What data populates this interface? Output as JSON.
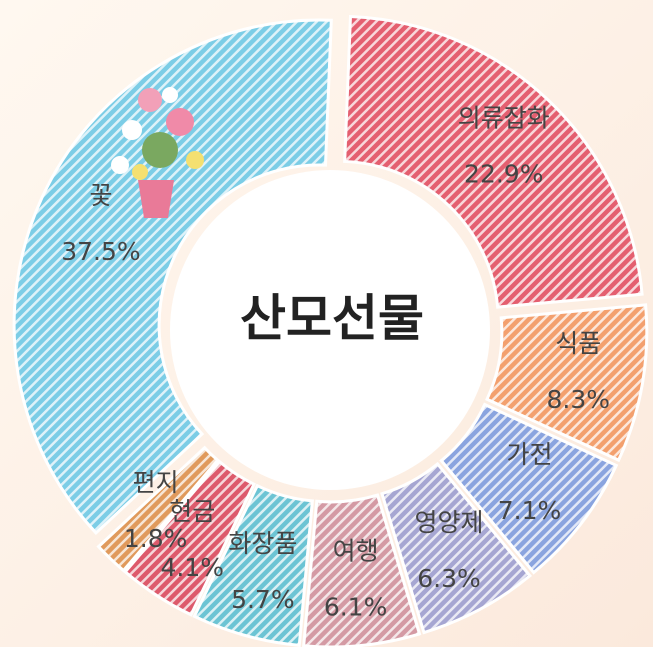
{
  "chart_data": {
    "type": "donut",
    "title": "산모선물",
    "categories": [
      "의류잡화",
      "식품",
      "가전",
      "영양제",
      "여행",
      "화장품",
      "현금",
      "편지",
      "꽃"
    ],
    "values": [
      22.9,
      8.3,
      7.1,
      6.3,
      6.1,
      5.7,
      4.1,
      1.8,
      37.5
    ],
    "value_labels": [
      "22.9%",
      "8.3%",
      "7.1%",
      "6.3%",
      "6.1%",
      "5.7%",
      "4.1%",
      "1.8%",
      "37.5%"
    ],
    "colors": [
      "#e45f70",
      "#f3a06e",
      "#8aa4df",
      "#a6a6d2",
      "#d49aa4",
      "#6cc4d4",
      "#dd5a6c",
      "#e09a5c",
      "#7ccde6"
    ]
  }
}
